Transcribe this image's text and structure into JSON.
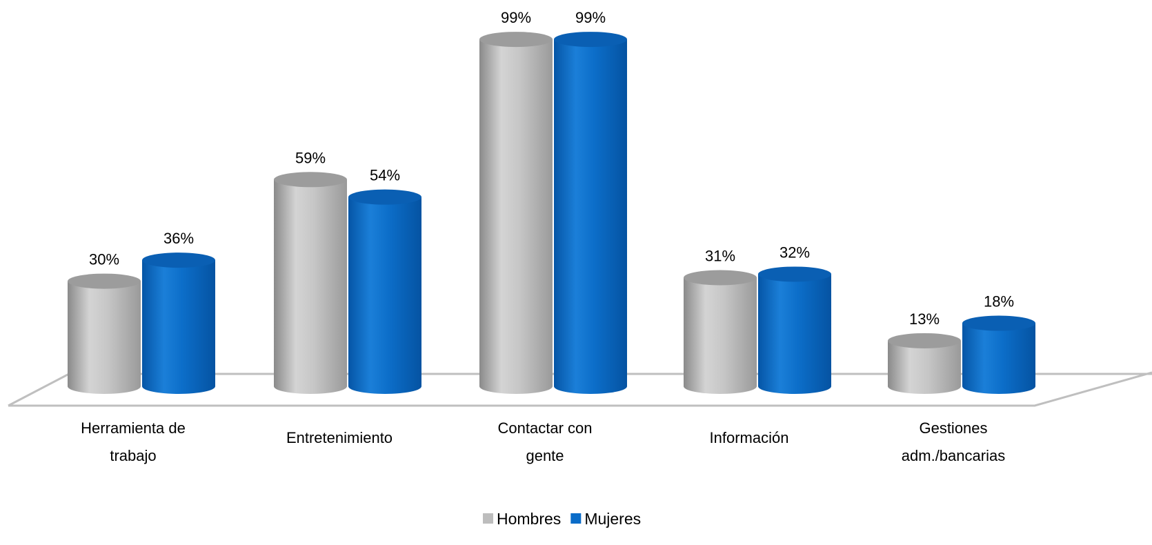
{
  "chart_data": {
    "type": "bar",
    "style": "3d-cylinder",
    "categories": [
      [
        "Herramienta de",
        "trabajo"
      ],
      [
        "Entretenimiento"
      ],
      [
        "Contactar con",
        "gente"
      ],
      [
        "Información"
      ],
      [
        "Gestiones",
        "adm./bancarias"
      ]
    ],
    "series": [
      {
        "name": "Hombres",
        "values": [
          30,
          59,
          99,
          31,
          13
        ],
        "labels": [
          "30%",
          "59%",
          "99%",
          "31%",
          "13%"
        ],
        "color": "#BDBDBD"
      },
      {
        "name": "Mujeres",
        "values": [
          36,
          54,
          99,
          32,
          18
        ],
        "labels": [
          "36%",
          "54%",
          "99%",
          "32%",
          "18%"
        ],
        "color": "#0A6CC8"
      }
    ],
    "title": "",
    "xlabel": "",
    "ylabel": "",
    "ylim": [
      0,
      100
    ],
    "grid": false,
    "legend_position": "bottom-center"
  }
}
